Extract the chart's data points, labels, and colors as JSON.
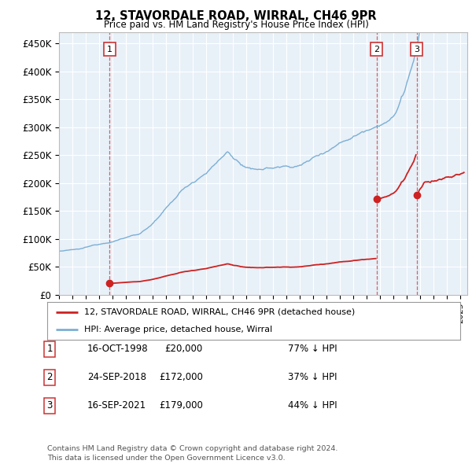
{
  "title": "12, STAVORDALE ROAD, WIRRAL, CH46 9PR",
  "subtitle": "Price paid vs. HM Land Registry's House Price Index (HPI)",
  "ylabel_ticks": [
    "£0",
    "£50K",
    "£100K",
    "£150K",
    "£200K",
    "£250K",
    "£300K",
    "£350K",
    "£400K",
    "£450K"
  ],
  "ytick_values": [
    0,
    50000,
    100000,
    150000,
    200000,
    250000,
    300000,
    350000,
    400000,
    450000
  ],
  "ylim": [
    0,
    470000
  ],
  "xlim_start": 1995.0,
  "xlim_end": 2025.5,
  "hpi_color": "#7bafd4",
  "sale_color": "#cc2222",
  "vline_color": "#cc3333",
  "sale_points": [
    {
      "year": 1998.79,
      "price": 20000,
      "label": "1"
    },
    {
      "year": 2018.73,
      "price": 172000,
      "label": "2"
    },
    {
      "year": 2021.71,
      "price": 179000,
      "label": "3"
    }
  ],
  "legend_sale_label": "12, STAVORDALE ROAD, WIRRAL, CH46 9PR (detached house)",
  "legend_hpi_label": "HPI: Average price, detached house, Wirral",
  "table_rows": [
    {
      "num": "1",
      "date": "16-OCT-1998",
      "price": "£20,000",
      "hpi": "77% ↓ HPI"
    },
    {
      "num": "2",
      "date": "24-SEP-2018",
      "price": "£172,000",
      "hpi": "37% ↓ HPI"
    },
    {
      "num": "3",
      "date": "16-SEP-2021",
      "price": "£179,000",
      "hpi": "44% ↓ HPI"
    }
  ],
  "footnote": "Contains HM Land Registry data © Crown copyright and database right 2024.\nThis data is licensed under the Open Government Licence v3.0.",
  "background_color": "#ffffff",
  "plot_bg_color": "#e8f0f8"
}
